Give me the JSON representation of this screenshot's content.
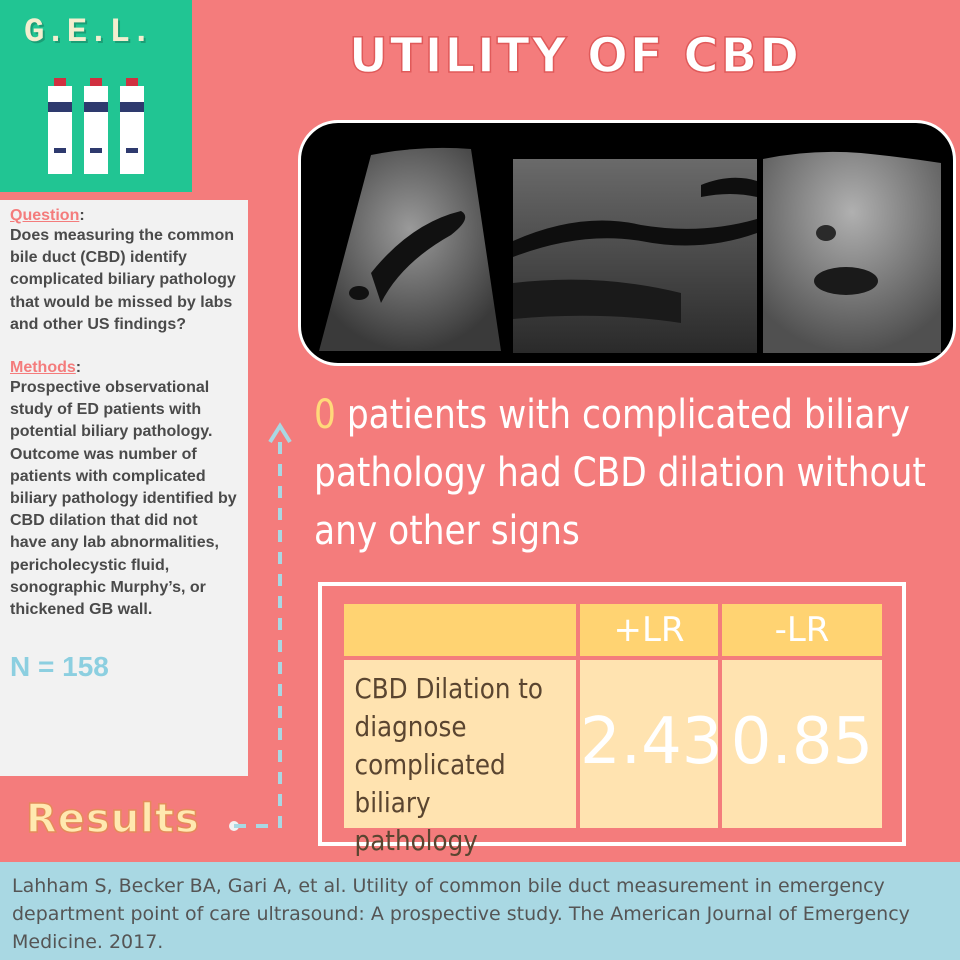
{
  "logo": {
    "text": "G.E.L."
  },
  "title": "UTILITY OF CBD",
  "question": {
    "heading": "Question",
    "text": "Does measuring the common bile duct (CBD) identify complicated biliary pathology that would be missed by labs and other US findings?"
  },
  "methods": {
    "heading": "Methods",
    "text": "Prospective observational study of ED patients with potential biliary pathology. Outcome was number of patients with complicated biliary pathology identified by CBD dilation that did not have  any lab abnormalities, pericholecystic fluid, sonographic Murphy’s, or thickened GB wall."
  },
  "n_label": "N = 158",
  "finding": {
    "number": "0",
    "text": " patients with complicated biliary pathology had CBD dilation without any other signs"
  },
  "table": {
    "headers": [
      "",
      "+LR",
      "-LR"
    ],
    "row_label": "CBD Dilation to diagnose complicated biliary pathology",
    "plus_lr": "2.43",
    "minus_lr": "0.85"
  },
  "results_label": "Results",
  "citation": "Lahham S, Becker BA, Gari A, et al. Utility of common bile duct measurement in emergency department point of care ultrasound: A prospective study. The American Journal of Emergency Medicine. 2017.",
  "colors": {
    "background": "#f47c7c",
    "logo_bg": "#21c593",
    "panel_bg": "#f2f2f2",
    "accent_yellow": "#ffd97a",
    "table_head": "#ffd372",
    "table_body": "#ffe3b0",
    "citation_bg": "#a9d8e3",
    "n_color": "#8ccfe0"
  },
  "icons": [
    "bottle-icon",
    "arrow-up-icon"
  ]
}
